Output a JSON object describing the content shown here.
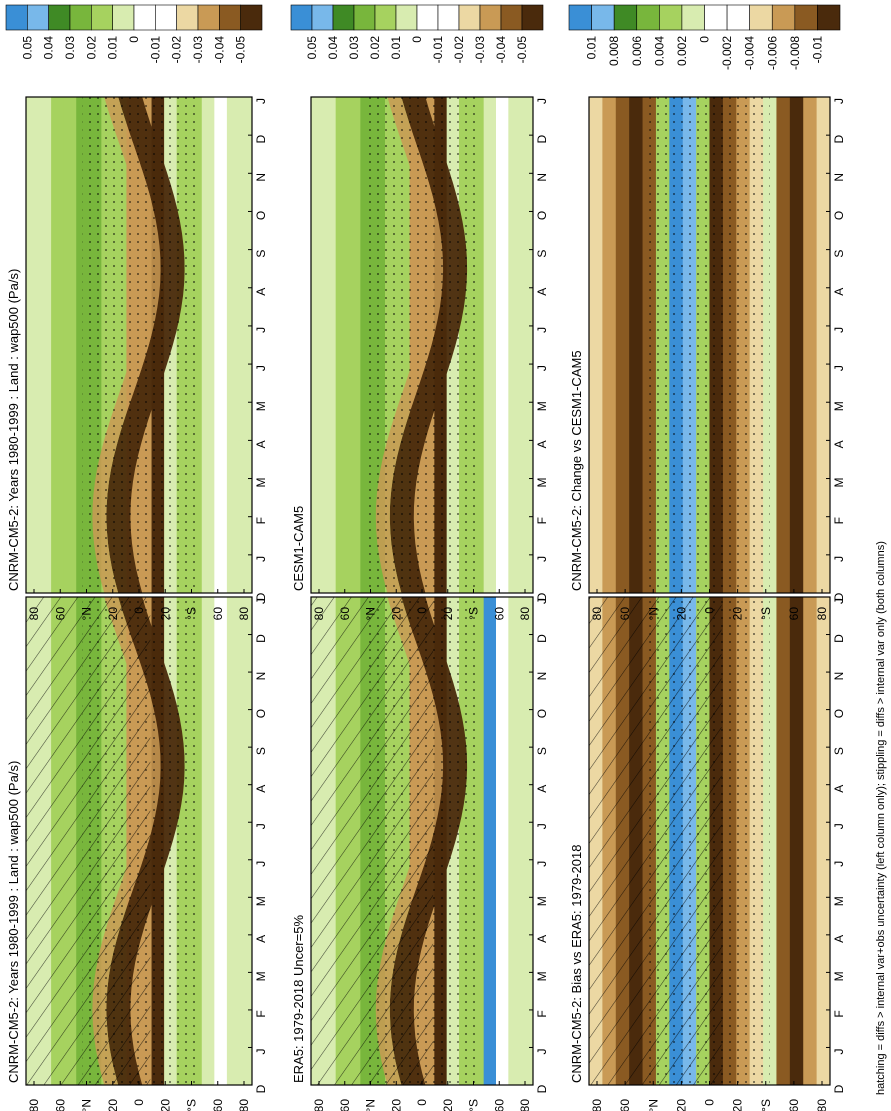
{
  "figure": {
    "footnote": "hatching = diffs > internal var+obs uncertainty (left column only); stippling = diffs > internal var only (both columns)",
    "month_labels": [
      "D",
      "J",
      "F",
      "M",
      "A",
      "M",
      "J",
      "J",
      "A",
      "S",
      "O",
      "N",
      "D",
      "J"
    ],
    "lat_labels": [
      "80",
      "60",
      "°N",
      "20",
      "0",
      "20",
      "°S",
      "60",
      "80"
    ]
  },
  "colors": {
    "brown_dark": "#4a2a0c",
    "brown": "#8a5a22",
    "tan": "#c99a55",
    "sand": "#ecd8a3",
    "white": "#ffffff",
    "green_light": "#d8ecb0",
    "green": "#a6d25f",
    "green_mid": "#78b63c",
    "green_dark": "#3f8a25",
    "blue": "#3a8fd6",
    "blue_light": "#78b8ea"
  },
  "chart_data": [
    {
      "type": "heatmap",
      "title": "CNRM-CM5-2: Years 1980-1999 : Land : wap500 (Pa/s)",
      "x_ticks": [
        "D",
        "J",
        "F",
        "M",
        "A",
        "M",
        "J",
        "J",
        "A",
        "S",
        "O",
        "N",
        "D",
        "J"
      ],
      "y_ticks": [
        "80",
        "60",
        "°N",
        "20",
        "0",
        "20",
        "°S",
        "60",
        "80"
      ],
      "colorbar_labels": [
        "0.05",
        "0.04",
        "0.03",
        "0.02",
        "0.01",
        "0",
        "-0.01",
        "-0.02",
        "-0.03",
        "-0.04",
        "-0.05"
      ],
      "hatching": true,
      "stippling": true
    },
    {
      "type": "heatmap",
      "title": "CNRM-CM5-2: Years 1980-1999 : Land : wap500 (Pa/s)",
      "x_ticks": [
        "D",
        "J",
        "F",
        "M",
        "A",
        "M",
        "J",
        "J",
        "A",
        "S",
        "O",
        "N",
        "D",
        "J"
      ],
      "y_ticks": [
        "80",
        "60",
        "°N",
        "20",
        "0",
        "20",
        "°S",
        "60",
        "80"
      ],
      "colorbar_labels": [
        "0.05",
        "0.04",
        "0.03",
        "0.02",
        "0.01",
        "0",
        "-0.01",
        "-0.02",
        "-0.03",
        "-0.04",
        "-0.05"
      ],
      "hatching": false,
      "stippling": true
    },
    {
      "type": "heatmap",
      "title": "ERA5: 1979-2018 Uncer=5%",
      "x_ticks": [
        "D",
        "J",
        "F",
        "M",
        "A",
        "M",
        "J",
        "J",
        "A",
        "S",
        "O",
        "N",
        "D",
        "J"
      ],
      "y_ticks": [
        "80",
        "60",
        "°N",
        "20",
        "0",
        "20",
        "°S",
        "60",
        "80"
      ],
      "colorbar_labels": [
        "0.05",
        "0.04",
        "0.03",
        "0.02",
        "0.01",
        "0",
        "-0.01",
        "-0.02",
        "-0.03",
        "-0.04",
        "-0.05"
      ],
      "hatching": true,
      "stippling": true
    },
    {
      "type": "heatmap",
      "title": "CESM1-CAM5",
      "x_ticks": [
        "D",
        "J",
        "F",
        "M",
        "A",
        "M",
        "J",
        "J",
        "A",
        "S",
        "O",
        "N",
        "D",
        "J"
      ],
      "y_ticks": [
        "80",
        "60",
        "°N",
        "20",
        "0",
        "20",
        "°S",
        "60",
        "80"
      ],
      "colorbar_labels": [
        "0.05",
        "0.04",
        "0.03",
        "0.02",
        "0.01",
        "0",
        "-0.01",
        "-0.02",
        "-0.03",
        "-0.04",
        "-0.05"
      ],
      "hatching": false,
      "stippling": true
    },
    {
      "type": "heatmap",
      "title": "CNRM-CM5-2: Bias vs ERA5: 1979-2018",
      "x_ticks": [
        "D",
        "J",
        "F",
        "M",
        "A",
        "M",
        "J",
        "J",
        "A",
        "S",
        "O",
        "N",
        "D",
        "J"
      ],
      "y_ticks": [
        "80",
        "60",
        "°N",
        "20",
        "0",
        "20",
        "°S",
        "60",
        "80"
      ],
      "colorbar_labels": [
        "0.01",
        "0.008",
        "0.006",
        "0.004",
        "0.002",
        "0",
        "-0.002",
        "-0.004",
        "-0.006",
        "-0.008",
        "-0.01"
      ],
      "hatching": true,
      "stippling": true
    },
    {
      "type": "heatmap",
      "title": "CNRM-CM5-2: Change vs CESM1-CAM5",
      "x_ticks": [
        "D",
        "J",
        "F",
        "M",
        "A",
        "M",
        "J",
        "J",
        "A",
        "S",
        "O",
        "N",
        "D",
        "J"
      ],
      "y_ticks": [
        "80",
        "60",
        "°N",
        "20",
        "0",
        "20",
        "°S",
        "60",
        "80"
      ],
      "colorbar_labels": [
        "0.01",
        "0.008",
        "0.006",
        "0.004",
        "0.002",
        "0",
        "-0.002",
        "-0.004",
        "-0.006",
        "-0.008",
        "-0.01"
      ],
      "hatching": false,
      "stippling": true
    }
  ]
}
